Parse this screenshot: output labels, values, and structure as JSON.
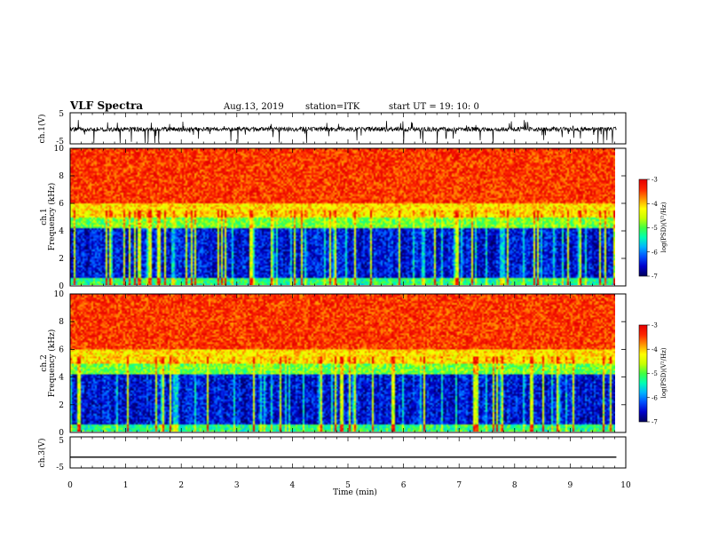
{
  "header": {
    "title": "VLF Spectra",
    "date": "Aug.13, 2019",
    "station": "station=ITK",
    "start": "start  UT =  19: 10: 0"
  },
  "colors": {
    "colormap": [
      "#000060",
      "#0000cc",
      "#0050ff",
      "#00b4ff",
      "#00ffb4",
      "#40ff40",
      "#c8ff00",
      "#ffff00",
      "#ff9600",
      "#ff2800",
      "#e60000"
    ]
  },
  "chart_data": [
    {
      "type": "line",
      "ylabel": "ch.1(V)",
      "ylim": [
        -5,
        5
      ],
      "yticks": [
        "5",
        "-5"
      ],
      "xlim": [
        0,
        10
      ],
      "baseline_v": -0.3,
      "noise_description_v": [
        -1.5,
        2
      ]
    },
    {
      "type": "heatmap",
      "ylabel_channel": "ch.1",
      "ylabel": "Frequency  (kHz)",
      "ylim": [
        0,
        10
      ],
      "yticks": [
        "0",
        "2",
        "4",
        "6",
        "8",
        "10"
      ],
      "xlim": [
        0,
        9.83
      ],
      "colorbar": {
        "label": "log(PSD)(V²/Hz)",
        "range": [
          -7,
          -3
        ],
        "ticks": [
          "-3",
          "-4",
          "-5",
          "-6",
          "-7"
        ]
      },
      "bands_khz": [
        {
          "from": 0,
          "to": 0.4,
          "log_psd": -5.2
        },
        {
          "from": 0.4,
          "to": 4.2,
          "log_psd": -6.5
        },
        {
          "from": 4.2,
          "to": 5.0,
          "log_psd": -4.9
        },
        {
          "from": 5.0,
          "to": 6.0,
          "log_psd": -4.1
        },
        {
          "from": 6.0,
          "to": 10,
          "log_psd": -3.4
        }
      ]
    },
    {
      "type": "heatmap",
      "ylabel_channel": "ch.2",
      "ylabel": "Frequency  (kHz)",
      "ylim": [
        0,
        10
      ],
      "yticks": [
        "0",
        "2",
        "4",
        "6",
        "8",
        "10"
      ],
      "xlim": [
        0,
        9.83
      ],
      "colorbar": {
        "label": "log(PSD)(V²/Hz)",
        "range": [
          -7,
          -3
        ],
        "ticks": [
          "-3",
          "-4",
          "-5",
          "-6",
          "-7"
        ]
      },
      "bands_khz": [
        {
          "from": 0,
          "to": 0.4,
          "log_psd": -5.2
        },
        {
          "from": 0.4,
          "to": 4.2,
          "log_psd": -6.5
        },
        {
          "from": 4.2,
          "to": 5.0,
          "log_psd": -4.9
        },
        {
          "from": 5.0,
          "to": 6.0,
          "log_psd": -4.1
        },
        {
          "from": 6.0,
          "to": 10,
          "log_psd": -3.4
        }
      ]
    },
    {
      "type": "line",
      "ylabel": "ch.3(V)",
      "ylim": [
        -5,
        5
      ],
      "yticks": [
        "5",
        "-5"
      ],
      "xlim": [
        0,
        10
      ],
      "baseline_v": -1.5,
      "xlabel": "Time  (min)",
      "xticks": [
        "0",
        "1",
        "2",
        "3",
        "4",
        "5",
        "6",
        "7",
        "8",
        "9",
        "10"
      ]
    }
  ]
}
